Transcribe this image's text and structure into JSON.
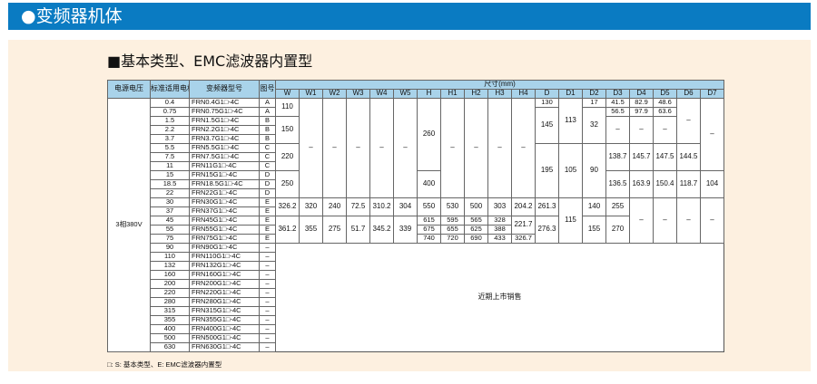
{
  "header": {
    "title": "●变频器机体",
    "bar_color": "#0a7bc2"
  },
  "panel": {
    "background": "#fdf0e0"
  },
  "subtitle": "■基本类型、EMC滤波器内置型",
  "table": {
    "header_color": "#a9d3ea",
    "headers": {
      "voltage": "电源电压",
      "motor": "标准适用电机(kW)",
      "model": "变频器型号",
      "figure": "图号",
      "dimensions": "尺寸(mm)"
    },
    "dim_columns": [
      "W",
      "W1",
      "W2",
      "W3",
      "W4",
      "W5",
      "H",
      "H1",
      "H2",
      "H3",
      "H4",
      "D",
      "D1",
      "D2",
      "D3",
      "D4",
      "D5",
      "D6",
      "D7"
    ],
    "rows": [
      {
        "cells": [
          {
            "t": "3相380V",
            "rs": 28
          },
          {
            "t": "0.4"
          },
          {
            "t": "FRN0.4G1□-4C"
          },
          {
            "t": "A"
          },
          {
            "t": "110",
            "rs": 2
          },
          {
            "t": "–",
            "rs": 11
          },
          {
            "t": "–",
            "rs": 11
          },
          {
            "t": "–",
            "rs": 11
          },
          {
            "t": "–",
            "rs": 11
          },
          {
            "t": "–",
            "rs": 11
          },
          {
            "t": "260",
            "rs": 8
          },
          {
            "t": "–",
            "rs": 11
          },
          {
            "t": "–",
            "rs": 11
          },
          {
            "t": "–",
            "rs": 11
          },
          {
            "t": "–",
            "rs": 11
          },
          {
            "t": "130"
          },
          {
            "t": "113",
            "rs": 5
          },
          {
            "t": "17"
          },
          {
            "t": "41.5"
          },
          {
            "t": "82.9"
          },
          {
            "t": "48.6"
          },
          {
            "t": "–",
            "rs": 5
          },
          {
            "t": "–",
            "rs": 8
          }
        ]
      },
      {
        "cells": [
          {
            "t": "0.75"
          },
          {
            "t": "FRN0.75G1□-4C"
          },
          {
            "t": "A"
          },
          {
            "t": "145",
            "rs": 4
          },
          {
            "t": "32",
            "rs": 4
          },
          {
            "t": "56.5"
          },
          {
            "t": "97.9"
          },
          {
            "t": "63.6"
          }
        ]
      },
      {
        "cells": [
          {
            "t": "1.5"
          },
          {
            "t": "FRN1.5G1□-4C"
          },
          {
            "t": "B"
          },
          {
            "t": "150",
            "rs": 3
          },
          {
            "t": "–",
            "rs": 3
          },
          {
            "t": "–",
            "rs": 3
          },
          {
            "t": "–",
            "rs": 3
          }
        ]
      },
      {
        "cells": [
          {
            "t": "2.2"
          },
          {
            "t": "FRN2.2G1□-4C"
          },
          {
            "t": "B"
          }
        ]
      },
      {
        "cells": [
          {
            "t": "3.7"
          },
          {
            "t": "FRN3.7G1□-4C"
          },
          {
            "t": "B"
          }
        ]
      },
      {
        "cells": [
          {
            "t": "5.5"
          },
          {
            "t": "FRN5.5G1□-4C"
          },
          {
            "t": "C"
          },
          {
            "t": "220",
            "rs": 3
          },
          {
            "t": "195",
            "rs": 6
          },
          {
            "t": "105",
            "rs": 6
          },
          {
            "t": "90",
            "rs": 6
          },
          {
            "t": "138.7",
            "rs": 3
          },
          {
            "t": "145.7",
            "rs": 3
          },
          {
            "t": "147.5",
            "rs": 3
          },
          {
            "t": "144.5",
            "rs": 3
          }
        ]
      },
      {
        "cells": [
          {
            "t": "7.5"
          },
          {
            "t": "FRN7.5G1□-4C"
          },
          {
            "t": "C"
          }
        ]
      },
      {
        "cells": [
          {
            "t": "11"
          },
          {
            "t": "FRN11G1□-4C"
          },
          {
            "t": "C"
          }
        ]
      },
      {
        "cells": [
          {
            "t": "15"
          },
          {
            "t": "FRN15G1□-4C"
          },
          {
            "t": "D"
          },
          {
            "t": "250",
            "rs": 3
          },
          {
            "t": "400",
            "rs": 3
          },
          {
            "t": "136.5",
            "rs": 3
          },
          {
            "t": "163.9",
            "rs": 3
          },
          {
            "t": "150.4",
            "rs": 3
          },
          {
            "t": "118.7",
            "rs": 3
          },
          {
            "t": "104",
            "rs": 3
          }
        ]
      },
      {
        "cells": [
          {
            "t": "18.5"
          },
          {
            "t": "FRN18.5G1□-4C"
          },
          {
            "t": "D"
          }
        ]
      },
      {
        "cells": [
          {
            "t": "22"
          },
          {
            "t": "FRN22G1□-4C"
          },
          {
            "t": "D"
          }
        ]
      },
      {
        "cells": [
          {
            "t": "30"
          },
          {
            "t": "FRN30G1□-4C"
          },
          {
            "t": "E"
          },
          {
            "t": "326.2",
            "rs": 2
          },
          {
            "t": "320",
            "rs": 2
          },
          {
            "t": "240",
            "rs": 2
          },
          {
            "t": "72.5",
            "rs": 2
          },
          {
            "t": "310.2",
            "rs": 2
          },
          {
            "t": "304",
            "rs": 2
          },
          {
            "t": "550",
            "rs": 2
          },
          {
            "t": "530",
            "rs": 2
          },
          {
            "t": "500",
            "rs": 2
          },
          {
            "t": "303",
            "rs": 2
          },
          {
            "t": "204.2",
            "rs": 2
          },
          {
            "t": "261.3",
            "rs": 2
          },
          {
            "t": "115",
            "rs": 5
          },
          {
            "t": "140",
            "rs": 2
          },
          {
            "t": "255",
            "rs": 2
          },
          {
            "t": "–",
            "rs": 5
          },
          {
            "t": "–",
            "rs": 5
          },
          {
            "t": "–",
            "rs": 5
          },
          {
            "t": "–",
            "rs": 5
          }
        ]
      },
      {
        "cells": [
          {
            "t": "37"
          },
          {
            "t": "FRN37G1□-4C"
          },
          {
            "t": "E"
          }
        ]
      },
      {
        "cells": [
          {
            "t": "45"
          },
          {
            "t": "FRN45G1□-4C"
          },
          {
            "t": "E"
          },
          {
            "t": "361.2",
            "rs": 3
          },
          {
            "t": "355",
            "rs": 3
          },
          {
            "t": "275",
            "rs": 3
          },
          {
            "t": "51.7",
            "rs": 3
          },
          {
            "t": "345.2",
            "rs": 3
          },
          {
            "t": "339",
            "rs": 3
          },
          {
            "t": "615"
          },
          {
            "t": "595"
          },
          {
            "t": "565"
          },
          {
            "t": "328"
          },
          {
            "t": "221.7",
            "rs": 2
          },
          {
            "t": "276.3",
            "rs": 3
          },
          {
            "t": "155",
            "rs": 3
          },
          {
            "t": "270",
            "rs": 3
          }
        ]
      },
      {
        "cells": [
          {
            "t": "55"
          },
          {
            "t": "FRN55G1□-4C"
          },
          {
            "t": "E"
          },
          {
            "t": "675"
          },
          {
            "t": "655"
          },
          {
            "t": "625"
          },
          {
            "t": "388"
          }
        ]
      },
      {
        "cells": [
          {
            "t": "75"
          },
          {
            "t": "FRN75G1□-4C"
          },
          {
            "t": "E"
          },
          {
            "t": "740"
          },
          {
            "t": "720"
          },
          {
            "t": "690"
          },
          {
            "t": "433"
          },
          {
            "t": "326.7"
          }
        ]
      },
      {
        "cells": [
          {
            "t": "90"
          },
          {
            "t": "FRN90G1□-4C"
          },
          {
            "t": "–"
          },
          {
            "t": "近期上市销售",
            "rs": 12,
            "cs": 19,
            "soon": true
          }
        ]
      },
      {
        "cells": [
          {
            "t": "110"
          },
          {
            "t": "FRN110G1□-4C"
          },
          {
            "t": "–"
          }
        ]
      },
      {
        "cells": [
          {
            "t": "132"
          },
          {
            "t": "FRN132G1□-4C"
          },
          {
            "t": "–"
          }
        ]
      },
      {
        "cells": [
          {
            "t": "160"
          },
          {
            "t": "FRN160G1□-4C"
          },
          {
            "t": "–"
          }
        ]
      },
      {
        "cells": [
          {
            "t": "200"
          },
          {
            "t": "FRN200G1□-4C"
          },
          {
            "t": "–"
          }
        ]
      },
      {
        "cells": [
          {
            "t": "220"
          },
          {
            "t": "FRN220G1□-4C"
          },
          {
            "t": "–"
          }
        ]
      },
      {
        "cells": [
          {
            "t": "280"
          },
          {
            "t": "FRN280G1□-4C"
          },
          {
            "t": "–"
          }
        ]
      },
      {
        "cells": [
          {
            "t": "315"
          },
          {
            "t": "FRN315G1□-4C"
          },
          {
            "t": "–"
          }
        ]
      },
      {
        "cells": [
          {
            "t": "355"
          },
          {
            "t": "FRN355G1□-4C"
          },
          {
            "t": "–"
          }
        ]
      },
      {
        "cells": [
          {
            "t": "400"
          },
          {
            "t": "FRN400G1□-4C"
          },
          {
            "t": "–"
          }
        ]
      },
      {
        "cells": [
          {
            "t": "500"
          },
          {
            "t": "FRN500G1□-4C"
          },
          {
            "t": "–"
          }
        ]
      },
      {
        "cells": [
          {
            "t": "630"
          },
          {
            "t": "FRN630G1□-4C"
          },
          {
            "t": "–"
          }
        ]
      }
    ]
  },
  "footnote": "□: S: 基本类型、E: EMC滤波器内置型"
}
